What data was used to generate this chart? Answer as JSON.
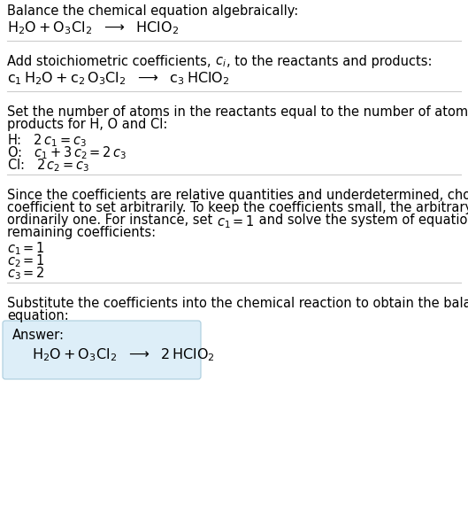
{
  "bg_color": "#ffffff",
  "text_color": "#000000",
  "separator_color": "#cccccc",
  "answer_box_color": "#ddeeff",
  "font_size_body": 10.5,
  "font_size_chem": 11.5,
  "font_size_chem_sub": 8,
  "sections": {
    "s1_title": "Balance the chemical equation algebraically:",
    "s1_eq": "$\\mathregular{H_2O + O_3Cl_2}$  →  $\\mathregular{HClO_2}$",
    "s2_title_a": "Add stoichiometric coefficients, ",
    "s2_title_ci": "$c_i$",
    "s2_title_b": ", to the reactants and products:",
    "s2_eq": "$c_1\\, \\mathregular{H_2O} + c_2\\, \\mathregular{O_3Cl_2}$  →  $c_3\\, \\mathregular{HClO_2}$",
    "s3_title_a": "Set the number of atoms in the reactants equal to the number of atoms in the",
    "s3_title_b": "products for H, O and Cl:",
    "s3_H": "H:   $2\\,c_1 = c_3$",
    "s3_O": "O:   $c_1 + 3\\,c_2 = 2\\,c_3$",
    "s3_Cl": "Cl:   $2\\,c_2 = c_3$",
    "s4_line1": "Since the coefficients are relative quantities and underdetermined, choose a",
    "s4_line2": "coefficient to set arbitrarily. To keep the coefficients small, the arbitrary value is",
    "s4_line3a": "ordinarily one. For instance, set ",
    "s4_line3ci": "$c_1 = 1$",
    "s4_line3b": " and solve the system of equations for the",
    "s4_line4": "remaining coefficients:",
    "s4_c1": "$c_1 = 1$",
    "s4_c2": "$c_2 = 1$",
    "s4_c3": "$c_3 = 2$",
    "s5_line1": "Substitute the coefficients into the chemical reaction to obtain the balanced",
    "s5_line2": "equation:",
    "answer_label": "Answer:",
    "answer_eq": "$\\mathregular{H_2O + O_3Cl_2}$  →  $\\mathregular{2\\,HClO_2}$"
  }
}
